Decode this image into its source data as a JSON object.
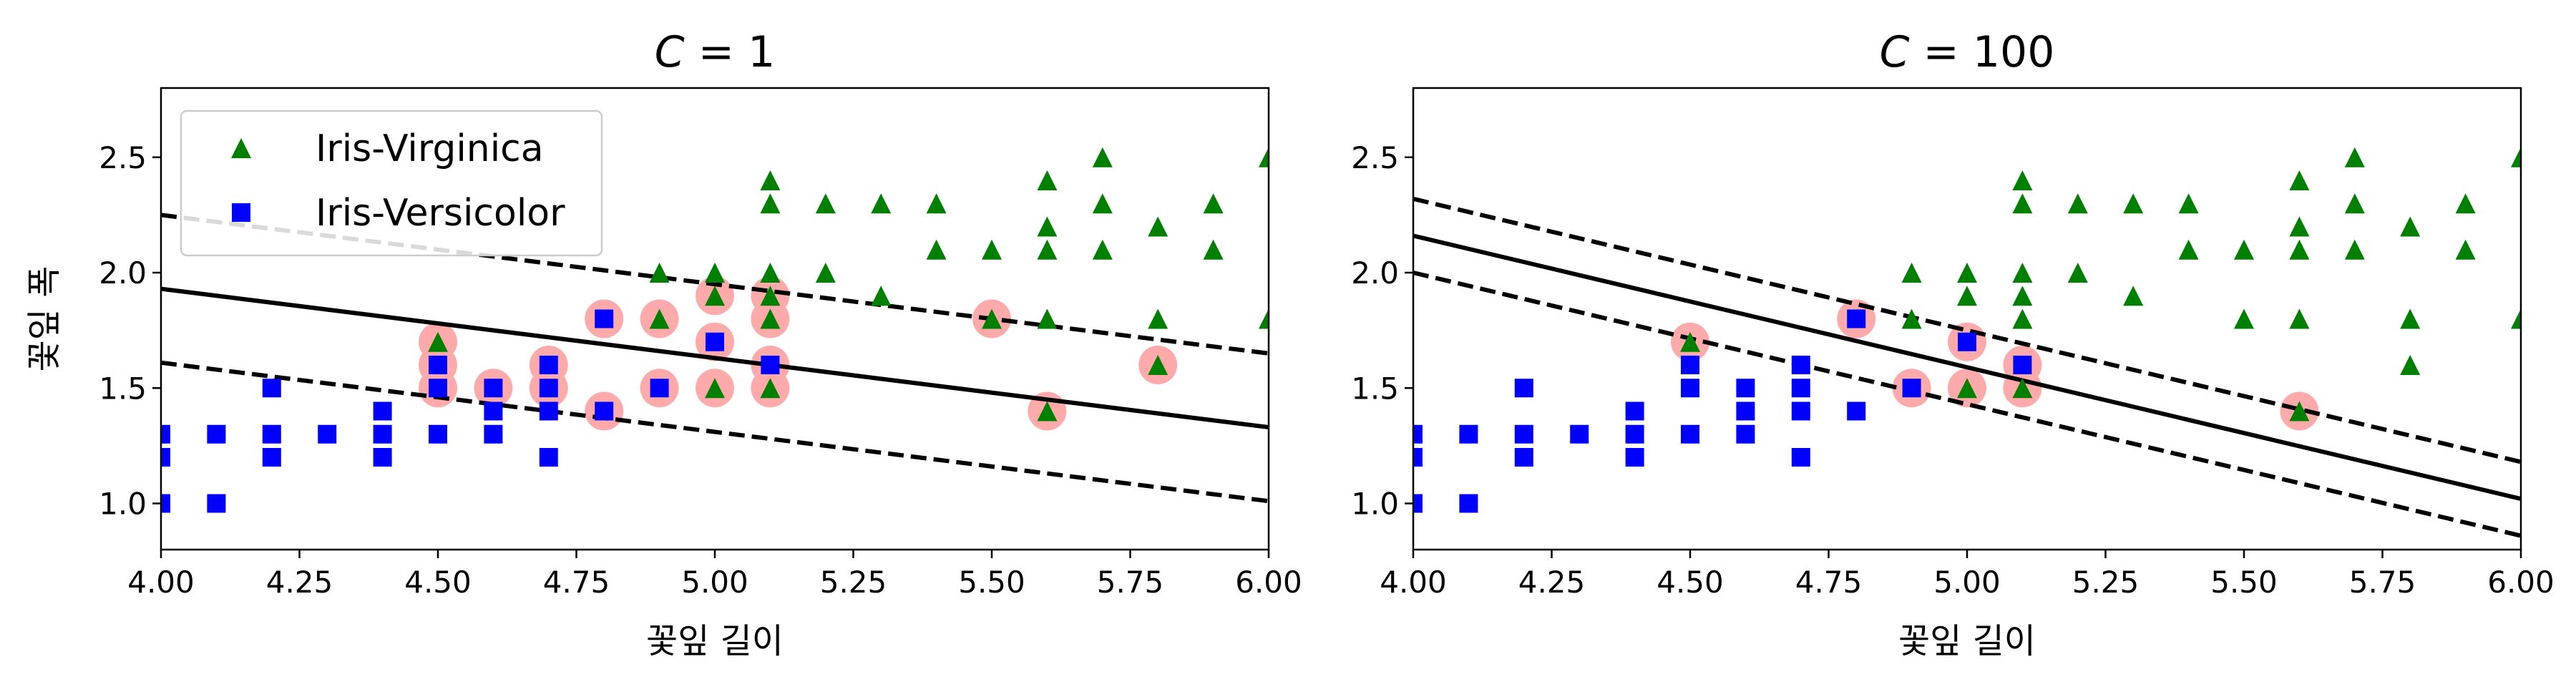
{
  "chart_data": [
    {
      "type": "scatter",
      "title": "C = 1",
      "title_var": "C",
      "title_rest": " = 1",
      "xlabel": "꽃잎 길이",
      "ylabel": "꽃잎 폭",
      "xlim": [
        4.0,
        6.0
      ],
      "ylim": [
        0.8,
        2.8
      ],
      "x_ticks": [
        "4.00",
        "4.25",
        "4.50",
        "4.75",
        "5.00",
        "5.25",
        "5.50",
        "5.75",
        "6.00"
      ],
      "y_ticks": [
        "1.0",
        "1.5",
        "2.0",
        "2.5"
      ],
      "grid": false,
      "legend_position": "top-left",
      "series": [
        {
          "name": "Iris-Virginica",
          "marker": "triangle",
          "color": "#008000",
          "points": [
            [
              4.5,
              1.7
            ],
            [
              4.9,
              1.8
            ],
            [
              4.9,
              2.0
            ],
            [
              5.0,
              1.5
            ],
            [
              5.0,
              1.9
            ],
            [
              5.0,
              2.0
            ],
            [
              5.1,
              1.5
            ],
            [
              5.1,
              1.8
            ],
            [
              5.1,
              1.9
            ],
            [
              5.1,
              2.0
            ],
            [
              5.1,
              2.3
            ],
            [
              5.1,
              2.4
            ],
            [
              5.2,
              2.0
            ],
            [
              5.2,
              2.3
            ],
            [
              5.3,
              1.9
            ],
            [
              5.3,
              2.3
            ],
            [
              5.4,
              2.1
            ],
            [
              5.4,
              2.3
            ],
            [
              5.5,
              1.8
            ],
            [
              5.5,
              2.1
            ],
            [
              5.6,
              1.4
            ],
            [
              5.6,
              1.8
            ],
            [
              5.6,
              2.1
            ],
            [
              5.6,
              2.2
            ],
            [
              5.6,
              2.4
            ],
            [
              5.7,
              2.1
            ],
            [
              5.7,
              2.3
            ],
            [
              5.7,
              2.5
            ],
            [
              5.8,
              1.6
            ],
            [
              5.8,
              1.8
            ],
            [
              5.8,
              2.2
            ],
            [
              5.9,
              2.1
            ],
            [
              5.9,
              2.3
            ],
            [
              6.0,
              1.8
            ],
            [
              6.0,
              2.5
            ]
          ]
        },
        {
          "name": "Iris-Versicolor",
          "marker": "square",
          "color": "#0000ff",
          "points": [
            [
              4.0,
              1.0
            ],
            [
              4.0,
              1.2
            ],
            [
              4.0,
              1.3
            ],
            [
              4.1,
              1.0
            ],
            [
              4.1,
              1.3
            ],
            [
              4.2,
              1.2
            ],
            [
              4.2,
              1.3
            ],
            [
              4.2,
              1.5
            ],
            [
              4.3,
              1.3
            ],
            [
              4.4,
              1.2
            ],
            [
              4.4,
              1.3
            ],
            [
              4.4,
              1.4
            ],
            [
              4.5,
              1.3
            ],
            [
              4.5,
              1.5
            ],
            [
              4.5,
              1.6
            ],
            [
              4.6,
              1.3
            ],
            [
              4.6,
              1.4
            ],
            [
              4.6,
              1.5
            ],
            [
              4.7,
              1.2
            ],
            [
              4.7,
              1.4
            ],
            [
              4.7,
              1.5
            ],
            [
              4.7,
              1.6
            ],
            [
              4.8,
              1.4
            ],
            [
              4.8,
              1.8
            ],
            [
              4.9,
              1.5
            ],
            [
              5.0,
              1.7
            ],
            [
              5.1,
              1.6
            ]
          ]
        }
      ],
      "support_vectors": [
        [
          4.5,
          1.5
        ],
        [
          4.5,
          1.6
        ],
        [
          4.5,
          1.7
        ],
        [
          4.6,
          1.5
        ],
        [
          4.7,
          1.5
        ],
        [
          4.7,
          1.6
        ],
        [
          4.8,
          1.4
        ],
        [
          4.8,
          1.8
        ],
        [
          4.9,
          1.5
        ],
        [
          4.9,
          1.8
        ],
        [
          5.0,
          1.5
        ],
        [
          5.0,
          1.7
        ],
        [
          5.0,
          1.9
        ],
        [
          5.1,
          1.5
        ],
        [
          5.1,
          1.6
        ],
        [
          5.1,
          1.8
        ],
        [
          5.1,
          1.9
        ],
        [
          5.5,
          1.8
        ],
        [
          5.6,
          1.4
        ],
        [
          5.8,
          1.6
        ]
      ],
      "decision_boundary": [
        [
          4.0,
          1.93
        ],
        [
          6.0,
          1.33
        ]
      ],
      "margin_upper": [
        [
          4.0,
          2.25
        ],
        [
          6.0,
          1.65
        ]
      ],
      "margin_lower": [
        [
          4.0,
          1.61
        ],
        [
          6.0,
          1.01
        ]
      ]
    },
    {
      "type": "scatter",
      "title": "C = 100",
      "title_var": "C",
      "title_rest": " = 100",
      "xlabel": "꽃잎 길이",
      "ylabel": "",
      "xlim": [
        4.0,
        6.0
      ],
      "ylim": [
        0.8,
        2.8
      ],
      "x_ticks": [
        "4.00",
        "4.25",
        "4.50",
        "4.75",
        "5.00",
        "5.25",
        "5.50",
        "5.75",
        "6.00"
      ],
      "y_ticks": [
        "1.0",
        "1.5",
        "2.0",
        "2.5"
      ],
      "grid": false,
      "series": [
        {
          "marker": "triangle",
          "color": "#008000",
          "points": [
            [
              4.5,
              1.7
            ],
            [
              4.9,
              1.8
            ],
            [
              4.9,
              2.0
            ],
            [
              5.0,
              1.5
            ],
            [
              5.0,
              1.9
            ],
            [
              5.0,
              2.0
            ],
            [
              5.1,
              1.5
            ],
            [
              5.1,
              1.8
            ],
            [
              5.1,
              1.9
            ],
            [
              5.1,
              2.0
            ],
            [
              5.1,
              2.3
            ],
            [
              5.1,
              2.4
            ],
            [
              5.2,
              2.0
            ],
            [
              5.2,
              2.3
            ],
            [
              5.3,
              1.9
            ],
            [
              5.3,
              2.3
            ],
            [
              5.4,
              2.1
            ],
            [
              5.4,
              2.3
            ],
            [
              5.5,
              1.8
            ],
            [
              5.5,
              2.1
            ],
            [
              5.6,
              1.4
            ],
            [
              5.6,
              1.8
            ],
            [
              5.6,
              2.1
            ],
            [
              5.6,
              2.2
            ],
            [
              5.6,
              2.4
            ],
            [
              5.7,
              2.1
            ],
            [
              5.7,
              2.3
            ],
            [
              5.7,
              2.5
            ],
            [
              5.8,
              1.6
            ],
            [
              5.8,
              1.8
            ],
            [
              5.8,
              2.2
            ],
            [
              5.9,
              2.1
            ],
            [
              5.9,
              2.3
            ],
            [
              6.0,
              1.8
            ],
            [
              6.0,
              2.5
            ]
          ]
        },
        {
          "marker": "square",
          "color": "#0000ff",
          "points": [
            [
              4.0,
              1.0
            ],
            [
              4.0,
              1.2
            ],
            [
              4.0,
              1.3
            ],
            [
              4.1,
              1.0
            ],
            [
              4.1,
              1.3
            ],
            [
              4.2,
              1.2
            ],
            [
              4.2,
              1.3
            ],
            [
              4.2,
              1.5
            ],
            [
              4.3,
              1.3
            ],
            [
              4.4,
              1.2
            ],
            [
              4.4,
              1.3
            ],
            [
              4.4,
              1.4
            ],
            [
              4.5,
              1.3
            ],
            [
              4.5,
              1.5
            ],
            [
              4.5,
              1.6
            ],
            [
              4.6,
              1.3
            ],
            [
              4.6,
              1.4
            ],
            [
              4.6,
              1.5
            ],
            [
              4.7,
              1.2
            ],
            [
              4.7,
              1.4
            ],
            [
              4.7,
              1.5
            ],
            [
              4.7,
              1.6
            ],
            [
              4.8,
              1.4
            ],
            [
              4.8,
              1.8
            ],
            [
              4.9,
              1.5
            ],
            [
              5.0,
              1.7
            ],
            [
              5.1,
              1.6
            ]
          ]
        }
      ],
      "support_vectors": [
        [
          4.5,
          1.7
        ],
        [
          4.8,
          1.8
        ],
        [
          4.9,
          1.5
        ],
        [
          5.0,
          1.5
        ],
        [
          5.0,
          1.7
        ],
        [
          5.1,
          1.5
        ],
        [
          5.1,
          1.6
        ],
        [
          5.6,
          1.4
        ]
      ],
      "decision_boundary": [
        [
          4.0,
          2.16
        ],
        [
          6.0,
          1.02
        ]
      ],
      "margin_upper": [
        [
          4.0,
          2.32
        ],
        [
          6.0,
          1.18
        ]
      ],
      "margin_lower": [
        [
          4.0,
          2.0
        ],
        [
          6.0,
          0.86
        ]
      ]
    }
  ],
  "colors": {
    "virginica": "#008000",
    "versicolor": "#0000ff",
    "support_vector": "#ffaaaa",
    "line": "#000000"
  }
}
